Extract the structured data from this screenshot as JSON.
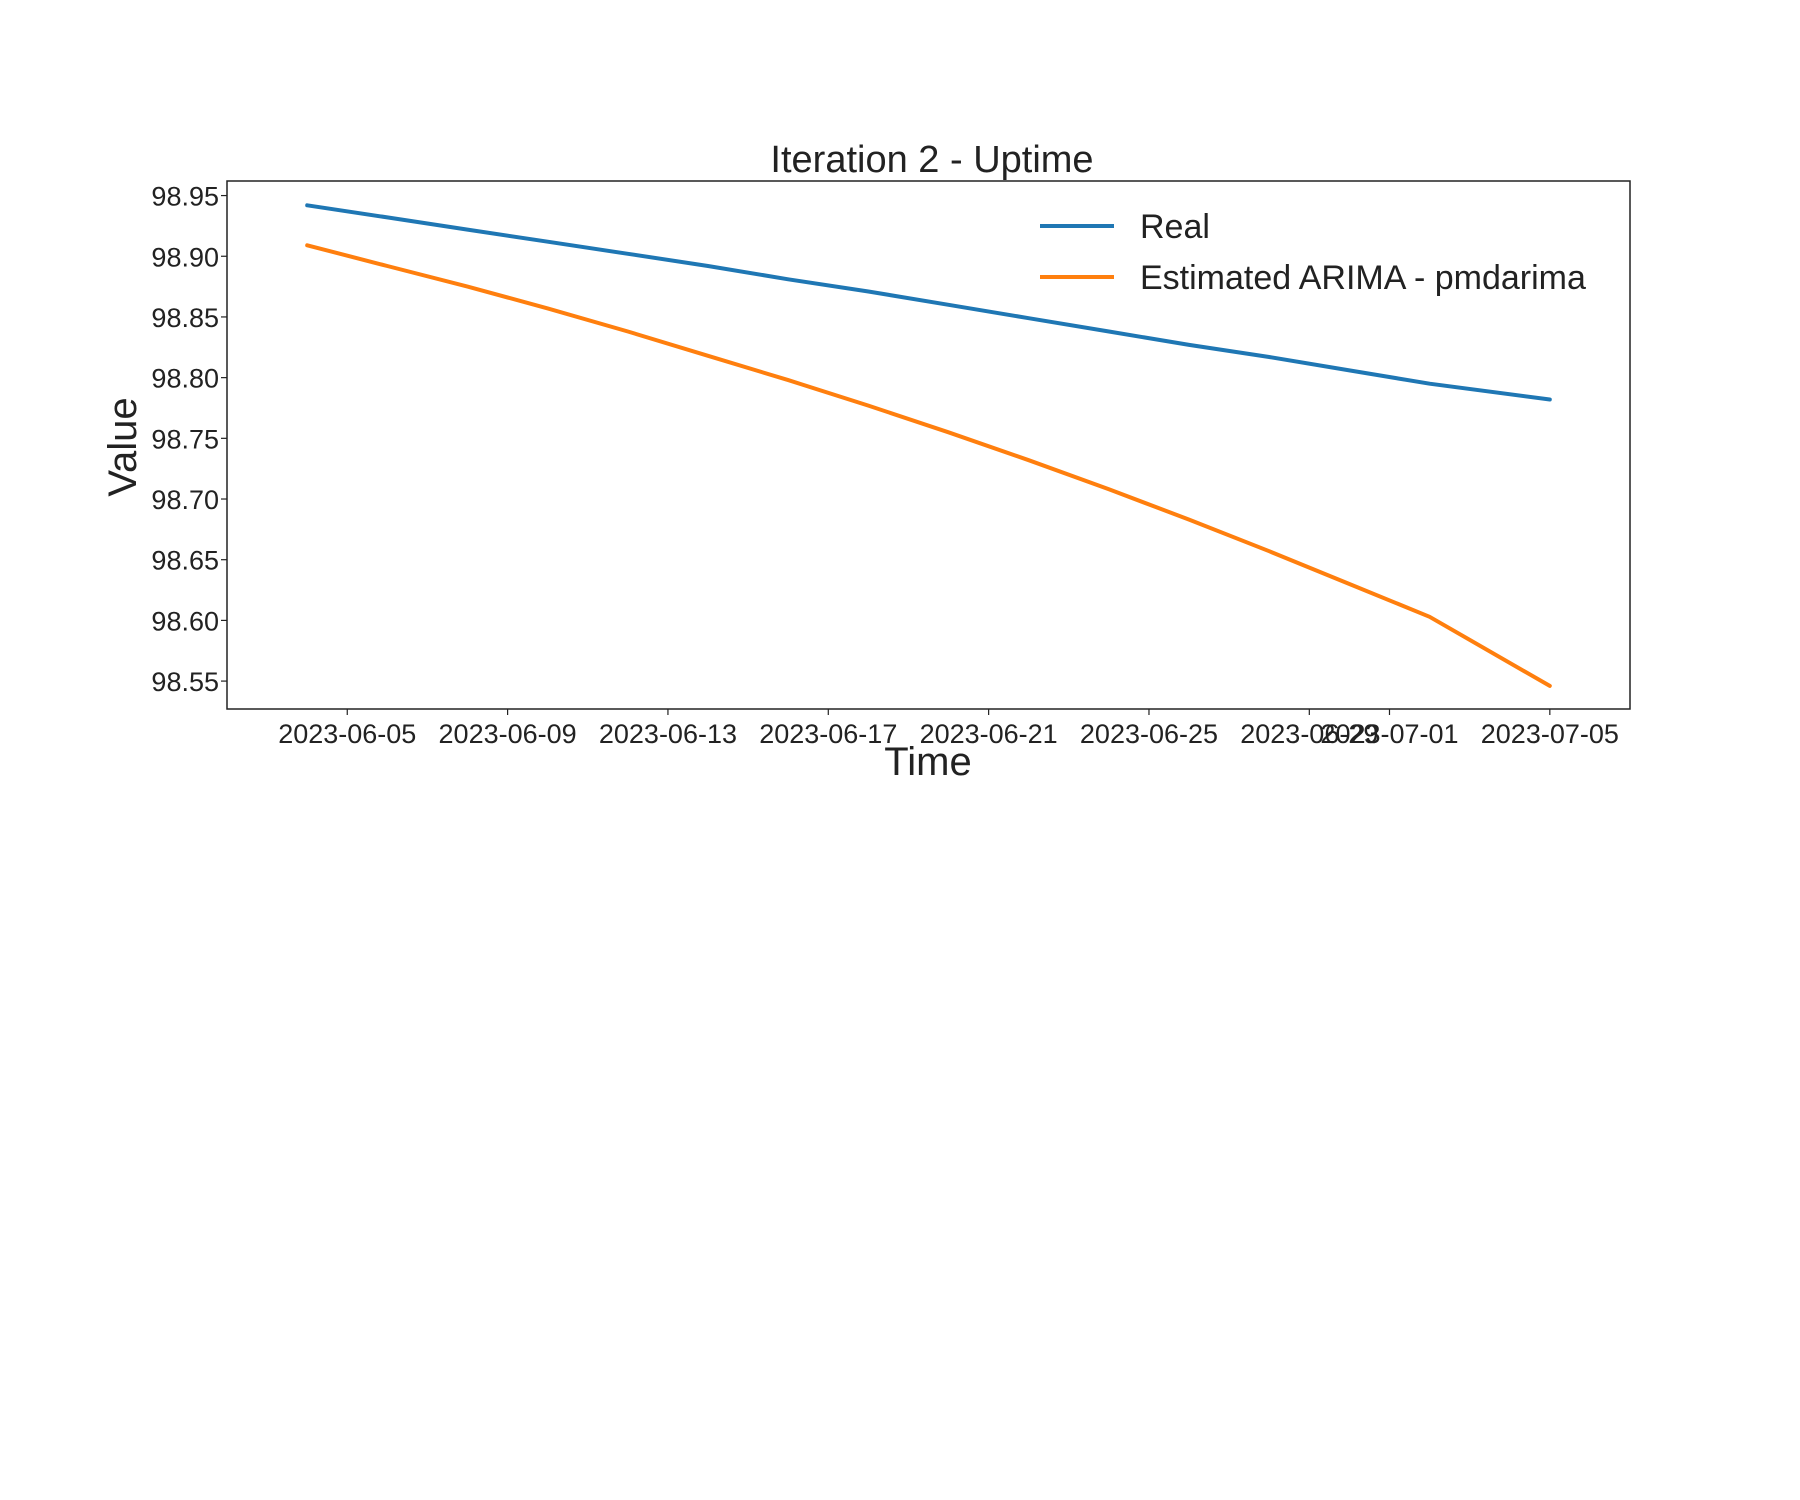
{
  "chart_data": {
    "type": "line",
    "title": "Iteration 2 - Uptime",
    "xlabel": "Time",
    "ylabel": "Value",
    "x_range": [
      "2023-06-02",
      "2023-07-07"
    ],
    "ylim": [
      98.527,
      98.962
    ],
    "x_ticks": [
      "2023-06-05",
      "2023-06-09",
      "2023-06-13",
      "2023-06-17",
      "2023-06-21",
      "2023-06-25",
      "2023-06-29",
      "2023-07-01",
      "2023-07-05"
    ],
    "y_ticks": [
      "98.55",
      "98.60",
      "98.65",
      "98.70",
      "98.75",
      "98.80",
      "98.85",
      "98.90",
      "98.95"
    ],
    "grid": false,
    "legend_position": "top-right",
    "x": [
      "2023-06-04",
      "2023-06-06",
      "2023-06-08",
      "2023-06-10",
      "2023-06-12",
      "2023-06-14",
      "2023-06-16",
      "2023-06-18",
      "2023-06-20",
      "2023-06-22",
      "2023-06-24",
      "2023-06-26",
      "2023-06-28",
      "2023-06-30",
      "2023-07-02",
      "2023-07-05"
    ],
    "series": [
      {
        "name": "Real",
        "color": "#1f77b4",
        "values": [
          98.942,
          98.932,
          98.922,
          98.912,
          98.902,
          98.892,
          98.881,
          98.871,
          98.86,
          98.849,
          98.838,
          98.827,
          98.817,
          98.806,
          98.795,
          98.782
        ]
      },
      {
        "name": "Estimated ARIMA - pmdarima",
        "color": "#ff7f0e",
        "values": [
          98.909,
          98.892,
          98.875,
          98.857,
          98.838,
          98.818,
          98.798,
          98.777,
          98.755,
          98.732,
          98.708,
          98.683,
          98.657,
          98.63,
          98.603,
          98.546
        ]
      }
    ]
  }
}
